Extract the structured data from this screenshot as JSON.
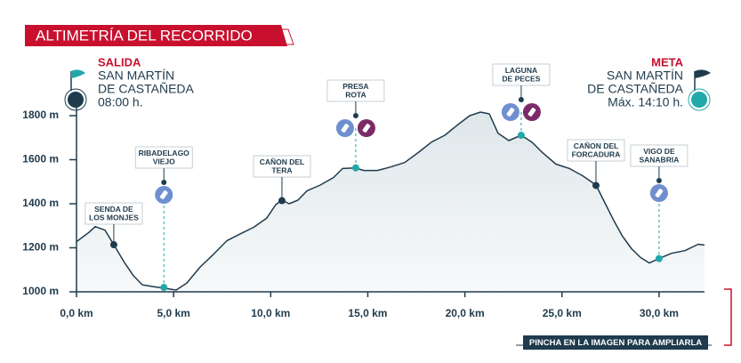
{
  "chart_data": {
    "type": "area",
    "title": "ALTIMETRÍA DEL RECORRIDO",
    "x": [
      0,
      0.64,
      0.96,
      1.47,
      1.92,
      2.47,
      2.93,
      3.39,
      3.94,
      4.54,
      5.13,
      5.68,
      6.37,
      7.05,
      7.74,
      8.43,
      9.12,
      9.8,
      10.26,
      10.58,
      10.95,
      11.4,
      11.86,
      12.55,
      13.24,
      13.7,
      14.34,
      14.8,
      15.5,
      16.17,
      16.9,
      17.59,
      18.28,
      18.97,
      19.65,
      20.25,
      20.8,
      21.26,
      21.71,
      22.26,
      22.9,
      23.45,
      24.0,
      24.69,
      25.38,
      26.07,
      26.75,
      27.21,
      27.67,
      28.1,
      28.58,
      29.04,
      29.5,
      30.0,
      30.64,
      31.33,
      32.02,
      32.34
    ],
    "values": [
      1228,
      1270,
      1296,
      1280,
      1214,
      1133,
      1073,
      1032,
      1024,
      1016,
      1008,
      1040,
      1113,
      1170,
      1232,
      1263,
      1293,
      1335,
      1396,
      1416,
      1400,
      1416,
      1458,
      1485,
      1519,
      1560,
      1563,
      1551,
      1551,
      1567,
      1587,
      1632,
      1680,
      1711,
      1760,
      1800,
      1816,
      1808,
      1720,
      1687,
      1711,
      1680,
      1632,
      1580,
      1560,
      1527,
      1485,
      1404,
      1323,
      1255,
      1196,
      1156,
      1131,
      1151,
      1175,
      1187,
      1216,
      1212
    ],
    "color": "#1f3b4d",
    "xlim": [
      0,
      32.34
    ],
    "ylim": [
      1000,
      1800
    ],
    "xticks": [
      {
        "value": 0,
        "label": "0,0 km"
      },
      {
        "value": 5,
        "label": "5,0 km"
      },
      {
        "value": 10,
        "label": "10,0 km"
      },
      {
        "value": 15,
        "label": "15,0 km"
      },
      {
        "value": 20,
        "label": "20,0 km"
      },
      {
        "value": 25,
        "label": "25,0 km"
      },
      {
        "value": 30,
        "label": "30,0 km"
      }
    ],
    "yticks": [
      {
        "value": 1000,
        "label": "1000 m"
      },
      {
        "value": 1200,
        "label": "1200 m"
      },
      {
        "value": 1400,
        "label": "1400 m"
      },
      {
        "value": 1600,
        "label": "1600 m"
      },
      {
        "value": 1800,
        "label": "1800 m"
      }
    ],
    "waypoints": [
      {
        "label": [
          "SENDA DE",
          "LOS MONJES"
        ],
        "x": 1.92,
        "y": 1214,
        "color": "#1f3b4d",
        "icons": []
      },
      {
        "label": [
          "RIBADELAGO",
          "VIEJO"
        ],
        "x": 4.5,
        "y": 1020,
        "color": "#21a8a8",
        "icons": [
          "#6f8fcf"
        ]
      },
      {
        "label": [
          "CAÑON DEL",
          "TERA"
        ],
        "x": 10.58,
        "y": 1414,
        "color": "#1f3b4d",
        "icons": []
      },
      {
        "label": [
          "PRESA",
          "ROTA"
        ],
        "x": 14.38,
        "y": 1563,
        "color": "#21a8a8",
        "icons": [
          "#6f8fcf",
          "#7d2a68"
        ]
      },
      {
        "label": [
          "LAGUNA",
          "DE PECES"
        ],
        "x": 22.9,
        "y": 1711,
        "color": "#21a8a8",
        "icons": [
          "#6f8fcf",
          "#7d2a68"
        ]
      },
      {
        "label": [
          "CAÑON DEL",
          "FORCADURA"
        ],
        "x": 26.75,
        "y": 1483,
        "color": "#1f3b4d",
        "icons": []
      },
      {
        "label": [
          "VIGO DE",
          "SANABRIA"
        ],
        "x": 30.0,
        "y": 1151,
        "color": "#21a8a8",
        "icons": [
          "#6f8fcf"
        ]
      }
    ],
    "start": {
      "label": "SALIDA",
      "lines": [
        "SAN MARTÍN",
        "DE CASTAÑEDA",
        "08:00 h."
      ]
    },
    "end": {
      "label": "META",
      "lines": [
        "SAN MARTÍN",
        "DE CASTAÑEDA",
        "Máx. 14:10 h."
      ]
    },
    "footer": "PINCHA EN LA IMAGEN PARA AMPLIARLA"
  }
}
